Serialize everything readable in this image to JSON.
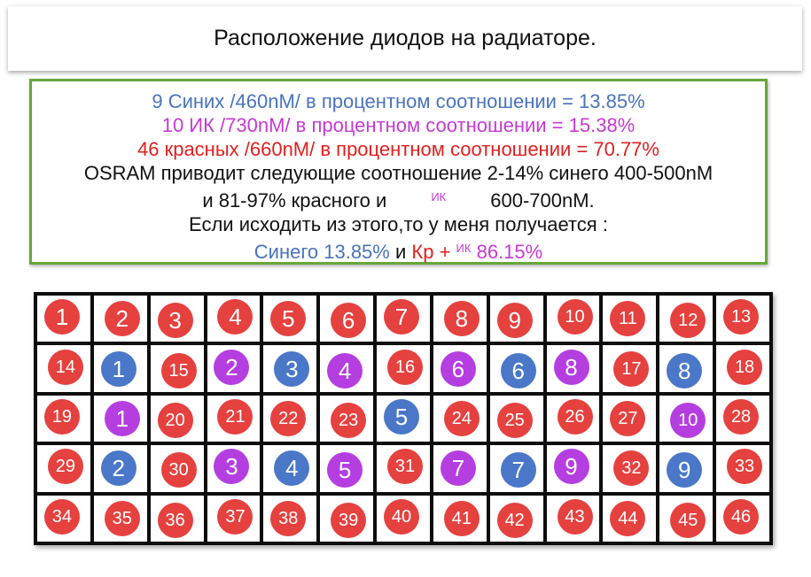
{
  "title": "Расположение диодов на радиаторе.",
  "info": {
    "blue_line": "9 Синих /460nM/ в процентном соотношении = 13.85%",
    "ir_line": "10 ИК /730nM/ в процентном соотношении = 15.38%",
    "red_line": "46 красных /660nM/ в процентном соотношении = 70.77%",
    "osram_line": "OSRAM приводит следующие соотношение 2-14% синего 400-500nM",
    "range_line_a": "и 81-97% красного и",
    "range_line_ik": "ИК",
    "range_line_b": "600-700nM.",
    "conclusion_line": "Если исходить из этого,то у меня получается :",
    "summary_blue": "Синего 13.85%",
    "summary_and": "и",
    "summary_red": "Кр +",
    "summary_ik": "ИК",
    "summary_value": "86.15%"
  },
  "colors": {
    "red": "#e5413f",
    "blue": "#4a77c8",
    "ir": "#b53ee0",
    "frame": "#66a73a"
  },
  "grid": {
    "rows": [
      [
        [
          "r",
          "1"
        ],
        [
          "r",
          "2"
        ],
        [
          "r",
          "3"
        ],
        [
          "r",
          "4"
        ],
        [
          "r",
          "5"
        ],
        [
          "r",
          "6"
        ],
        [
          "r",
          "7"
        ],
        [
          "r",
          "8"
        ],
        [
          "r",
          "9"
        ],
        [
          "r",
          "10"
        ],
        [
          "r",
          "11"
        ],
        [
          "r",
          "12"
        ],
        [
          "r",
          "13"
        ]
      ],
      [
        [
          "r",
          "14"
        ],
        [
          "b",
          "1"
        ],
        [
          "r",
          "15"
        ],
        [
          "i",
          "2"
        ],
        [
          "b",
          "3"
        ],
        [
          "i",
          "4"
        ],
        [
          "r",
          "16"
        ],
        [
          "i",
          "6"
        ],
        [
          "b",
          "6"
        ],
        [
          "i",
          "8"
        ],
        [
          "r",
          "17"
        ],
        [
          "b",
          "8"
        ],
        [
          "r",
          "18"
        ]
      ],
      [
        [
          "r",
          "19"
        ],
        [
          "i",
          "1"
        ],
        [
          "r",
          "20"
        ],
        [
          "r",
          "21"
        ],
        [
          "r",
          "22"
        ],
        [
          "r",
          "23"
        ],
        [
          "b",
          "5"
        ],
        [
          "r",
          "24"
        ],
        [
          "r",
          "25"
        ],
        [
          "r",
          "26"
        ],
        [
          "r",
          "27"
        ],
        [
          "i",
          "10"
        ],
        [
          "r",
          "28"
        ]
      ],
      [
        [
          "r",
          "29"
        ],
        [
          "b",
          "2"
        ],
        [
          "r",
          "30"
        ],
        [
          "i",
          "3"
        ],
        [
          "b",
          "4"
        ],
        [
          "i",
          "5"
        ],
        [
          "r",
          "31"
        ],
        [
          "i",
          "7"
        ],
        [
          "b",
          "7"
        ],
        [
          "i",
          "9"
        ],
        [
          "r",
          "32"
        ],
        [
          "b",
          "9"
        ],
        [
          "r",
          "33"
        ]
      ],
      [
        [
          "r",
          "34"
        ],
        [
          "r",
          "35"
        ],
        [
          "r",
          "36"
        ],
        [
          "r",
          "37"
        ],
        [
          "r",
          "38"
        ],
        [
          "r",
          "39"
        ],
        [
          "r",
          "40"
        ],
        [
          "r",
          "41"
        ],
        [
          "r",
          "42"
        ],
        [
          "r",
          "43"
        ],
        [
          "r",
          "44"
        ],
        [
          "r",
          "45"
        ],
        [
          "r",
          "46"
        ]
      ]
    ]
  }
}
